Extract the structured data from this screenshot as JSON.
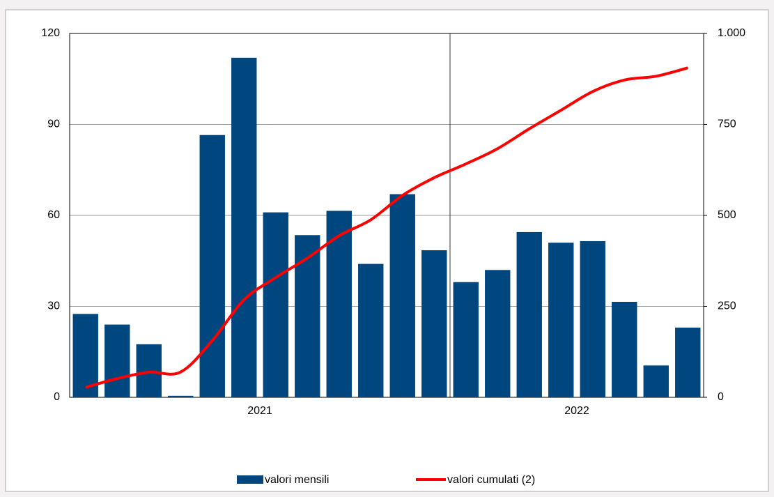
{
  "chart_data": {
    "type": "bar-line",
    "categories": [
      null,
      null,
      null,
      null,
      null,
      null,
      null,
      null,
      null,
      null,
      null,
      null,
      null,
      null,
      null,
      null,
      null,
      null,
      null,
      null
    ],
    "groups": [
      {
        "label": "2021",
        "size": 12
      },
      {
        "label": "2022",
        "size": 8
      }
    ],
    "series": [
      {
        "name": "valori mensili",
        "type": "bar",
        "color": "#00467f",
        "values": [
          27.5,
          24,
          17.5,
          0.5,
          86.5,
          112,
          61,
          53.5,
          61.5,
          44,
          67,
          48.5,
          38,
          42,
          54.5,
          51,
          51.5,
          31.5,
          10.5,
          23
        ]
      },
      {
        "name": "valori cumulati (2)",
        "type": "line",
        "axis": "y2",
        "color": "#ff0000",
        "values": [
          27.5,
          51.5,
          69,
          69.5,
          156,
          268,
          329,
          382.5,
          444,
          488,
          555,
          603.5,
          641.5,
          683.5,
          738,
          789,
          840.5,
          872,
          882.5,
          905.5
        ]
      }
    ],
    "ylim": [
      0,
      120
    ],
    "yticks": [
      0,
      30,
      60,
      90,
      120
    ],
    "y2lim": [
      0,
      1000
    ],
    "y2ticks": [
      0,
      250,
      500,
      750,
      {
        "value": 1000,
        "label": "1.000"
      }
    ],
    "grid": true
  }
}
